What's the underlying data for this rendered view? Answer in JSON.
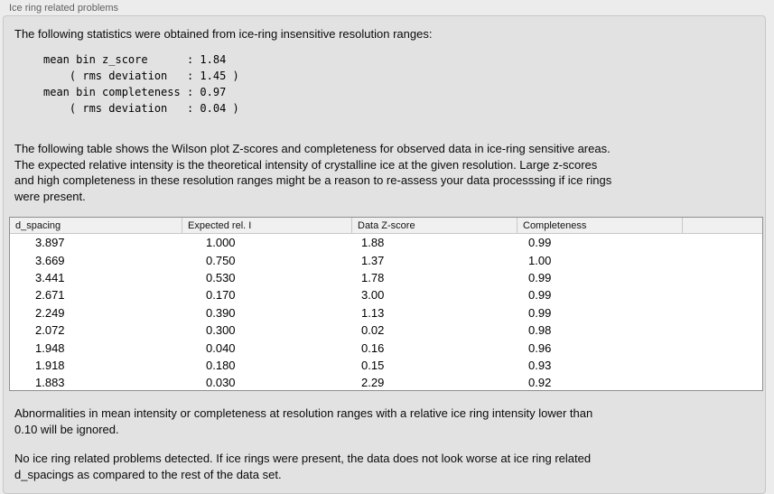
{
  "panel": {
    "title": "Ice ring related problems"
  },
  "intro": {
    "text": "The following statistics were obtained from ice-ring insensitive resolution ranges:",
    "stats_block": "mean bin z_score      : 1.84\n    ( rms deviation   : 1.45 )\nmean bin completeness : 0.97\n    ( rms deviation   : 0.04 )"
  },
  "description": {
    "text": "The following table shows the Wilson plot Z-scores and completeness for observed data in ice-ring sensitive areas.\nThe expected relative intensity is the theoretical intensity of crystalline ice at the given resolution. Large z-scores\nand high completeness in these resolution ranges might be a reason to re-assess your data processsing if ice rings\nwere present."
  },
  "table": {
    "columns": [
      "d_spacing",
      "Expected rel. I",
      "Data Z-score",
      "Completeness",
      ""
    ],
    "rows": [
      [
        "3.897",
        "1.000",
        "1.88",
        "0.99"
      ],
      [
        "3.669",
        "0.750",
        "1.37",
        "1.00"
      ],
      [
        "3.441",
        "0.530",
        "1.78",
        "0.99"
      ],
      [
        "2.671",
        "0.170",
        "3.00",
        "0.99"
      ],
      [
        "2.249",
        "0.390",
        "1.13",
        "0.99"
      ],
      [
        "2.072",
        "0.300",
        "0.02",
        "0.98"
      ],
      [
        "1.948",
        "0.040",
        "0.16",
        "0.96"
      ],
      [
        "1.918",
        "0.180",
        "0.15",
        "0.93"
      ],
      [
        "1.883",
        "0.030",
        "2.29",
        "0.92"
      ]
    ]
  },
  "notes": {
    "ignore_note": "Abnormalities in mean intensity or completeness at resolution ranges with a relative ice ring intensity lower than\n0.10 will be ignored.",
    "conclusion": "No ice ring related problems detected. If ice rings were present, the data does not look worse at ice ring related\nd_spacings as compared to the rest of the data set."
  },
  "colors": {
    "outer_background": "#ececec",
    "panel_background": "#e2e2e2",
    "panel_border": "#c7c7c7",
    "table_background": "#ffffff",
    "table_border": "#8e8e8e",
    "table_header_background": "#f0f0f0",
    "text": "#0a0a0a"
  }
}
